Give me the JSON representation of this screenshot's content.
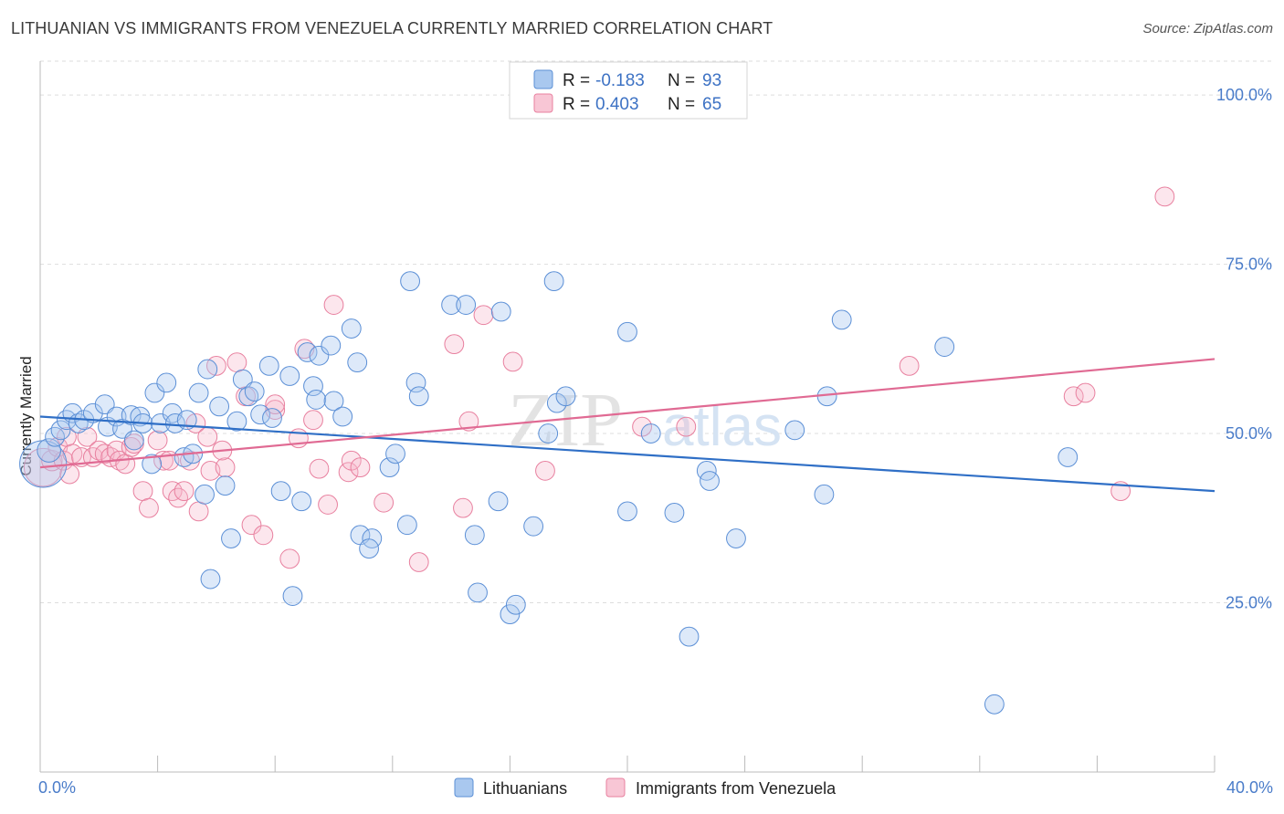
{
  "title": "LITHUANIAN VS IMMIGRANTS FROM VENEZUELA CURRENTLY MARRIED CORRELATION CHART",
  "source": "Source: ZipAtlas.com",
  "watermark": {
    "zip": "ZIP",
    "atlas": "atlas"
  },
  "colors": {
    "blue_fill": "#a9c8ef",
    "blue_stroke": "#5b8fd6",
    "blue_line": "#2f6fc6",
    "pink_fill": "#f5b8cb",
    "pink_stroke": "#e8809f",
    "pink_line": "#e06a93",
    "grid": "#dddddd",
    "axis_label": "#4a7cc9"
  },
  "legend": {
    "rows": [
      {
        "r_label": "R =",
        "r_value": "-0.183",
        "n_label": "N =",
        "n_value": "93"
      },
      {
        "r_label": "R =",
        "r_value": "0.403",
        "n_label": "N =",
        "n_value": "65"
      }
    ]
  },
  "bottom_legend": [
    "Lithuanians",
    "Immigrants from Venezuela"
  ],
  "chart_data": {
    "type": "scatter",
    "title": "LITHUANIAN VS IMMIGRANTS FROM VENEZUELA CURRENTLY MARRIED CORRELATION CHART",
    "xlabel": "",
    "ylabel": "Currently Married",
    "xlim": [
      0,
      40
    ],
    "ylim": [
      0,
      105
    ],
    "x_tick_labels": [
      "0.0%",
      "40.0%"
    ],
    "y_ticks": [
      25,
      50,
      75,
      100
    ],
    "y_tick_labels": [
      "25.0%",
      "50.0%",
      "75.0%",
      "100.0%"
    ],
    "grid": true,
    "series": [
      {
        "name": "Lithuanians",
        "r": -0.183,
        "n": 93,
        "trend": {
          "x": [
            0,
            40
          ],
          "y": [
            52.5,
            41.5
          ]
        },
        "points": [
          [
            0.1,
            45.5,
            3.2
          ],
          [
            0.3,
            47.5,
            1.6
          ],
          [
            0.5,
            49.5,
            1.3
          ],
          [
            0.7,
            50.5,
            1.3
          ],
          [
            0.9,
            52.0,
            1.3
          ],
          [
            1.1,
            53.0,
            1.3
          ],
          [
            1.3,
            51.5,
            1.3
          ],
          [
            1.5,
            52.0,
            1.3
          ],
          [
            1.8,
            53.0,
            1.3
          ],
          [
            2.2,
            54.3,
            1.3
          ],
          [
            2.3,
            51.0,
            1.3
          ],
          [
            2.6,
            52.5,
            1.3
          ],
          [
            2.8,
            50.7,
            1.3
          ],
          [
            3.1,
            52.7,
            1.3
          ],
          [
            3.2,
            49.0,
            1.3
          ],
          [
            3.4,
            52.5,
            1.3
          ],
          [
            3.5,
            51.5,
            1.3
          ],
          [
            3.8,
            45.5,
            1.3
          ],
          [
            3.9,
            56.0,
            1.3
          ],
          [
            4.1,
            51.5,
            1.3
          ],
          [
            4.3,
            57.5,
            1.3
          ],
          [
            4.5,
            53.0,
            1.3
          ],
          [
            4.6,
            51.5,
            1.3
          ],
          [
            4.9,
            46.5,
            1.3
          ],
          [
            5.0,
            52.0,
            1.3
          ],
          [
            5.2,
            47.0,
            1.3
          ],
          [
            5.4,
            56.0,
            1.3
          ],
          [
            5.6,
            41.0,
            1.3
          ],
          [
            5.7,
            59.5,
            1.3
          ],
          [
            5.8,
            28.5,
            1.3
          ],
          [
            6.1,
            54.0,
            1.3
          ],
          [
            6.3,
            42.3,
            1.3
          ],
          [
            6.5,
            34.5,
            1.3
          ],
          [
            6.7,
            51.8,
            1.3
          ],
          [
            6.9,
            58.0,
            1.3
          ],
          [
            7.1,
            55.5,
            1.3
          ],
          [
            7.3,
            56.2,
            1.3
          ],
          [
            7.5,
            52.8,
            1.3
          ],
          [
            7.8,
            60.0,
            1.3
          ],
          [
            7.9,
            52.3,
            1.3
          ],
          [
            8.2,
            41.5,
            1.3
          ],
          [
            8.5,
            58.5,
            1.3
          ],
          [
            8.6,
            26.0,
            1.3
          ],
          [
            8.9,
            40.0,
            1.3
          ],
          [
            9.1,
            62.0,
            1.3
          ],
          [
            9.3,
            57.0,
            1.3
          ],
          [
            9.4,
            55.0,
            1.3
          ],
          [
            9.5,
            61.5,
            1.3
          ],
          [
            9.9,
            63.0,
            1.3
          ],
          [
            10.0,
            54.8,
            1.3
          ],
          [
            10.3,
            52.5,
            1.3
          ],
          [
            10.6,
            65.5,
            1.3
          ],
          [
            10.8,
            60.5,
            1.3
          ],
          [
            10.9,
            35.0,
            1.3
          ],
          [
            11.3,
            34.5,
            1.3
          ],
          [
            11.2,
            33.0,
            1.3
          ],
          [
            11.9,
            45.0,
            1.3
          ],
          [
            12.1,
            47.0,
            1.3
          ],
          [
            12.5,
            36.5,
            1.3
          ],
          [
            12.6,
            72.5,
            1.3
          ],
          [
            12.8,
            57.5,
            1.3
          ],
          [
            12.9,
            55.5,
            1.3
          ],
          [
            14.0,
            69.0,
            1.3
          ],
          [
            14.5,
            69.0,
            1.3
          ],
          [
            14.8,
            35.0,
            1.3
          ],
          [
            14.9,
            26.5,
            1.3
          ],
          [
            15.6,
            40.0,
            1.3
          ],
          [
            15.7,
            68.0,
            1.3
          ],
          [
            16.0,
            23.3,
            1.3
          ],
          [
            16.2,
            24.7,
            1.3
          ],
          [
            16.8,
            36.3,
            1.3
          ],
          [
            17.3,
            50.0,
            1.3
          ],
          [
            17.6,
            54.5,
            1.3
          ],
          [
            17.5,
            72.5,
            1.3
          ],
          [
            17.9,
            55.5,
            1.3
          ],
          [
            20.0,
            65.0,
            1.3
          ],
          [
            20.0,
            38.5,
            1.3
          ],
          [
            20.8,
            50.0,
            1.3
          ],
          [
            21.6,
            38.3,
            1.3
          ],
          [
            22.1,
            20.0,
            1.3
          ],
          [
            22.7,
            44.5,
            1.3
          ],
          [
            22.8,
            43.0,
            1.3
          ],
          [
            23.7,
            34.5,
            1.3
          ],
          [
            25.7,
            50.5,
            1.3
          ],
          [
            26.7,
            41.0,
            1.3
          ],
          [
            26.8,
            55.5,
            1.3
          ],
          [
            27.3,
            66.8,
            1.3
          ],
          [
            30.8,
            62.8,
            1.3
          ],
          [
            32.5,
            10.0,
            1.3
          ],
          [
            35.0,
            46.5,
            1.3
          ]
        ]
      },
      {
        "name": "Immigrants from Venezuela",
        "r": 0.403,
        "n": 65,
        "trend": {
          "x": [
            0,
            40
          ],
          "y": [
            45.0,
            61.0
          ]
        },
        "points": [
          [
            0.1,
            45.0,
            2.6
          ],
          [
            0.4,
            46.0,
            1.4
          ],
          [
            0.6,
            48.0,
            1.3
          ],
          [
            0.8,
            46.0,
            1.3
          ],
          [
            0.9,
            49.5,
            1.3
          ],
          [
            1.1,
            47.0,
            1.3
          ],
          [
            1.4,
            46.5,
            1.3
          ],
          [
            1.6,
            49.5,
            1.3
          ],
          [
            1.8,
            46.5,
            1.3
          ],
          [
            2.0,
            47.5,
            1.3
          ],
          [
            2.2,
            47.0,
            1.3
          ],
          [
            2.4,
            46.5,
            1.3
          ],
          [
            2.6,
            47.5,
            1.3
          ],
          [
            2.7,
            46.0,
            1.3
          ],
          [
            2.9,
            45.5,
            1.3
          ],
          [
            3.1,
            48.0,
            1.3
          ],
          [
            3.2,
            48.5,
            1.3
          ],
          [
            3.5,
            41.5,
            1.3
          ],
          [
            3.7,
            39.0,
            1.3
          ],
          [
            4.0,
            49.0,
            1.3
          ],
          [
            4.2,
            46.0,
            1.3
          ],
          [
            4.4,
            46.0,
            1.3
          ],
          [
            4.5,
            41.5,
            1.3
          ],
          [
            4.7,
            40.5,
            1.3
          ],
          [
            4.9,
            41.5,
            1.3
          ],
          [
            5.1,
            46.0,
            1.3
          ],
          [
            5.3,
            51.5,
            1.3
          ],
          [
            5.4,
            38.5,
            1.3
          ],
          [
            5.7,
            49.5,
            1.3
          ],
          [
            5.8,
            44.5,
            1.3
          ],
          [
            6.0,
            60.0,
            1.3
          ],
          [
            6.3,
            45.0,
            1.3
          ],
          [
            6.7,
            60.5,
            1.3
          ],
          [
            7.0,
            55.5,
            1.3
          ],
          [
            7.2,
            36.5,
            1.3
          ],
          [
            7.6,
            35.0,
            1.3
          ],
          [
            8.0,
            53.5,
            1.3
          ],
          [
            8.0,
            54.3,
            1.3
          ],
          [
            8.5,
            31.5,
            1.3
          ],
          [
            8.8,
            49.3,
            1.3
          ],
          [
            9.0,
            62.5,
            1.3
          ],
          [
            9.3,
            52.0,
            1.3
          ],
          [
            9.5,
            44.8,
            1.3
          ],
          [
            9.8,
            39.5,
            1.3
          ],
          [
            10.0,
            69.0,
            1.3
          ],
          [
            10.5,
            44.3,
            1.3
          ],
          [
            10.6,
            46.0,
            1.3
          ],
          [
            10.9,
            45.0,
            1.3
          ],
          [
            11.7,
            39.8,
            1.3
          ],
          [
            12.9,
            31.0,
            1.3
          ],
          [
            14.1,
            63.2,
            1.3
          ],
          [
            14.4,
            39.0,
            1.3
          ],
          [
            14.6,
            51.8,
            1.3
          ],
          [
            15.1,
            67.5,
            1.3
          ],
          [
            16.1,
            60.6,
            1.3
          ],
          [
            17.2,
            44.5,
            1.3
          ],
          [
            20.5,
            51.0,
            1.3
          ],
          [
            22.0,
            51.0,
            1.3
          ],
          [
            29.6,
            60.0,
            1.3
          ],
          [
            35.2,
            55.5,
            1.3
          ],
          [
            35.6,
            56.0,
            1.3
          ],
          [
            36.8,
            41.5,
            1.3
          ],
          [
            38.3,
            85.0,
            1.3
          ],
          [
            1.0,
            44.0,
            1.3
          ],
          [
            6.2,
            47.5,
            1.3
          ]
        ]
      }
    ]
  }
}
